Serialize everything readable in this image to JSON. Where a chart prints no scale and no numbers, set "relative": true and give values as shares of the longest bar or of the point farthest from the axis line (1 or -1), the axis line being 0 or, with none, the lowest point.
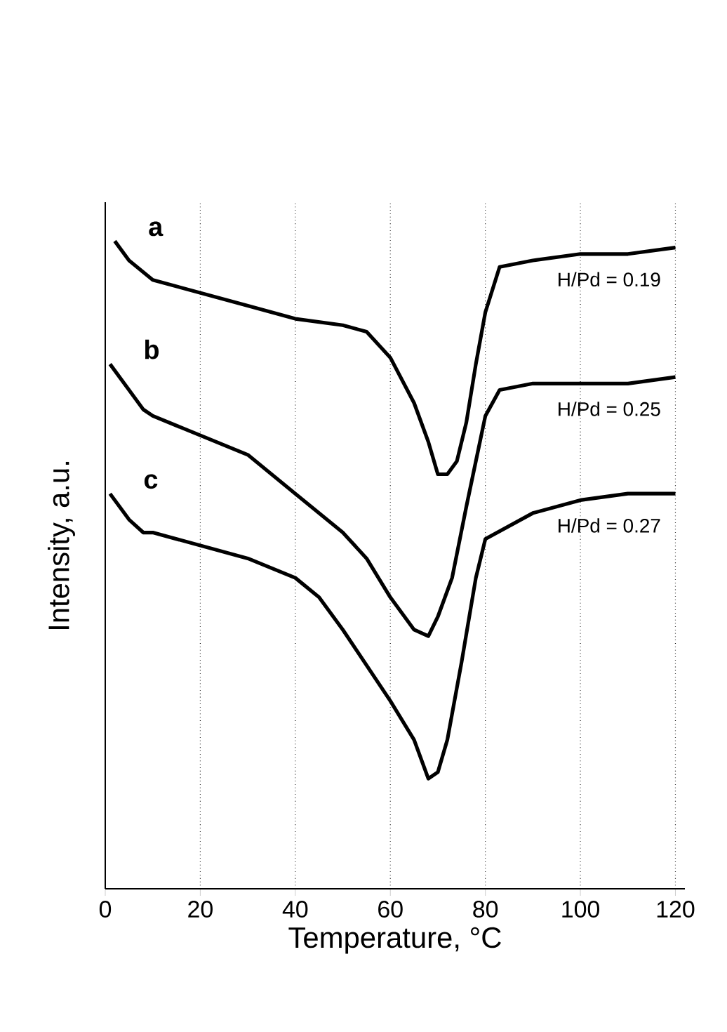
{
  "chart_data": {
    "type": "line",
    "xlabel": "Temperature, °C",
    "ylabel": "Intensity, a.u.",
    "relative": true,
    "xlim": [
      0,
      122
    ],
    "xticks": [
      0,
      20,
      40,
      60,
      80,
      100,
      120
    ],
    "grid": "x",
    "line_style": "solid",
    "marker": "none",
    "x": [
      2,
      5,
      10,
      20,
      30,
      40,
      50,
      55,
      60,
      65,
      68,
      70,
      72,
      74,
      76,
      78,
      80,
      83,
      90,
      100,
      110,
      120
    ],
    "series": [
      {
        "name": "a",
        "color": "#000000",
        "values": [
          1.0,
          0.97,
          0.94,
          0.92,
          0.9,
          0.88,
          0.87,
          0.86,
          0.82,
          0.75,
          0.69,
          0.64,
          0.64,
          0.66,
          0.72,
          0.81,
          0.89,
          0.96,
          0.97,
          0.98,
          0.98,
          0.99
        ]
      },
      {
        "name": "b",
        "color": "#000000",
        "x": [
          1,
          5,
          8,
          10,
          20,
          30,
          40,
          50,
          55,
          60,
          65,
          68,
          70,
          73,
          76,
          80,
          83,
          90,
          100,
          110,
          120
        ],
        "values": [
          0.81,
          0.77,
          0.74,
          0.73,
          0.7,
          0.67,
          0.61,
          0.55,
          0.51,
          0.45,
          0.4,
          0.39,
          0.42,
          0.48,
          0.59,
          0.73,
          0.77,
          0.78,
          0.78,
          0.78,
          0.79
        ]
      },
      {
        "name": "c",
        "color": "#000000",
        "x": [
          1,
          5,
          8,
          10,
          20,
          30,
          40,
          45,
          50,
          60,
          65,
          68,
          70,
          72,
          75,
          78,
          80,
          85,
          90,
          100,
          110,
          120
        ],
        "values": [
          0.61,
          0.57,
          0.55,
          0.55,
          0.53,
          0.51,
          0.48,
          0.45,
          0.4,
          0.29,
          0.23,
          0.17,
          0.18,
          0.23,
          0.35,
          0.48,
          0.54,
          0.56,
          0.58,
          0.6,
          0.61,
          0.61
        ]
      }
    ],
    "annotations": [
      "H/Pd = 0.19",
      "H/Pd = 0.25",
      "H/Pd = 0.27"
    ]
  }
}
